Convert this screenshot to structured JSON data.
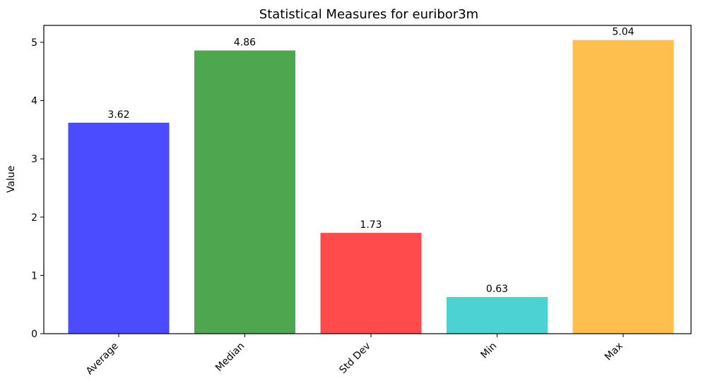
{
  "chart_data": {
    "type": "bar",
    "title": "Statistical Measures for euribor3m",
    "xlabel": "",
    "ylabel": "Value",
    "categories": [
      "Average",
      "Median",
      "Std Dev",
      "Min",
      "Max"
    ],
    "values": [
      3.62,
      4.86,
      1.73,
      0.63,
      5.04
    ],
    "value_labels": [
      "3.62",
      "4.86",
      "1.73",
      "0.63",
      "5.04"
    ],
    "colors": [
      "#4b4bff",
      "#4ea64e",
      "#ff4b4b",
      "#4dd2d2",
      "#ffbf4d"
    ],
    "yticks": [
      0,
      1,
      2,
      3,
      4,
      5
    ],
    "ylim": [
      0,
      5.29
    ],
    "grid": false,
    "x_tick_rotation": 45
  }
}
